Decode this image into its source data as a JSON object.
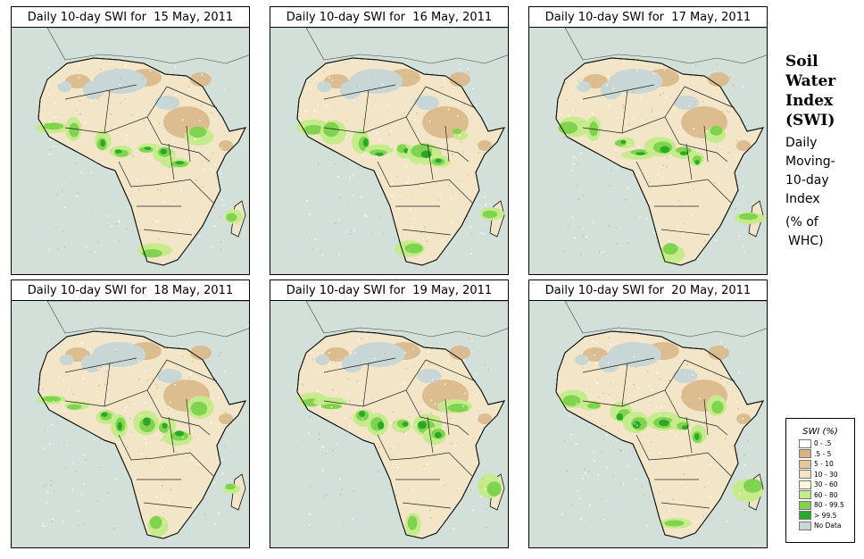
{
  "panels": [
    {
      "title": "Daily 10-day SWI for  15 May, 2011"
    },
    {
      "title": "Daily 10-day SWI for  16 May, 2011"
    },
    {
      "title": "Daily 10-day SWI for  17 May, 2011"
    },
    {
      "title": "Daily 10-day SWI for  18 May, 2011"
    },
    {
      "title": "Daily 10-day SWI for  19 May, 2011"
    },
    {
      "title": "Daily 10-day SWI for  20 May, 2011"
    }
  ],
  "side": {
    "title_lines": [
      "Soil",
      "Water",
      "Index",
      "(SWI)"
    ],
    "subtitle_lines": [
      "Daily",
      "Moving-",
      "10-day",
      "Index"
    ],
    "unit_lines": [
      "(% of",
      "WHC)"
    ]
  },
  "legend": {
    "title": "SWI (%)",
    "items": [
      {
        "label": "0 - .5",
        "color": "#ffffff"
      },
      {
        "label": ".5 - 5",
        "color": "#d7b384"
      },
      {
        "label": "5 - 10",
        "color": "#e5c89a"
      },
      {
        "label": "10 - 30",
        "color": "#f2e3c2"
      },
      {
        "label": "30 - 60",
        "color": "#fbf5de"
      },
      {
        "label": "60 - 80",
        "color": "#c6eb8c"
      },
      {
        "label": "80 - 99.5",
        "color": "#7fd34e"
      },
      {
        "label": "> 99.5",
        "color": "#2aa82a"
      },
      {
        "label": "No Data",
        "color": "#c9d6d6"
      }
    ]
  },
  "colors": {
    "ocean": "#d2e0d9",
    "land": "#f3e6c8",
    "dry": "#d9b889",
    "wet": "#7fd34e",
    "very_wet": "#2aa82a",
    "moist": "#c6eb8c",
    "nodata": "#c9d6d6",
    "border": "#222222"
  }
}
